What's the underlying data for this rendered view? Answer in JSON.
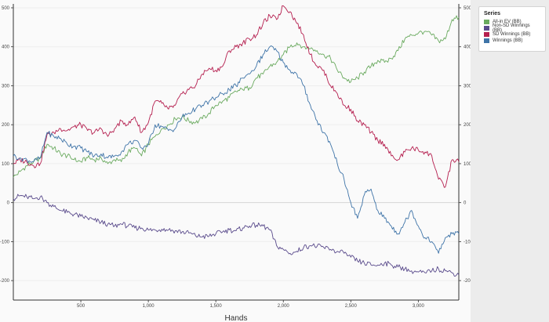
{
  "legend": {
    "title": "Series",
    "items": [
      {
        "label": "All-in EV (BB)",
        "color": "#6aaa5f"
      },
      {
        "label": "Non-SD Winnings (BB)",
        "color": "#5a4b8c"
      },
      {
        "label": "SD Winnings (BB)",
        "color": "#b51f4f"
      },
      {
        "label": "Winnings (BB)",
        "color": "#3f74a8"
      }
    ]
  },
  "chart_data": {
    "type": "line",
    "xlabel": "Hands",
    "ylabel": "",
    "xlim": [
      0,
      3300
    ],
    "ylim": [
      -250,
      510
    ],
    "x_ticks": [
      500,
      1000,
      1500,
      2000,
      2500,
      3000
    ],
    "x_tick_labels": [
      "500",
      "1,000",
      "1,500",
      "2,000",
      "2,500",
      "3,000"
    ],
    "y_ticks": [
      -200,
      -100,
      0,
      100,
      200,
      300,
      400,
      500
    ],
    "y_tick_labels": [
      "-200",
      "-100",
      "0",
      "100",
      "200",
      "300",
      "400",
      "500"
    ],
    "grid": "horizontal",
    "legend_position": "right",
    "series": [
      {
        "name": "All-in EV (BB)",
        "color": "#6aaa5f",
        "x": [
          0,
          50,
          100,
          150,
          200,
          250,
          300,
          350,
          400,
          450,
          500,
          550,
          600,
          650,
          700,
          750,
          800,
          850,
          900,
          950,
          1000,
          1050,
          1100,
          1150,
          1200,
          1250,
          1300,
          1350,
          1400,
          1450,
          1500,
          1550,
          1600,
          1650,
          1700,
          1750,
          1800,
          1850,
          1900,
          1950,
          2000,
          2050,
          2100,
          2150,
          2200,
          2250,
          2300,
          2350,
          2400,
          2450,
          2500,
          2550,
          2600,
          2650,
          2700,
          2750,
          2800,
          2850,
          2900,
          2950,
          3000,
          3050,
          3100,
          3150,
          3200,
          3250,
          3300
        ],
        "values": [
          65,
          80,
          95,
          105,
          115,
          150,
          140,
          125,
          120,
          110,
          105,
          115,
          110,
          115,
          100,
          110,
          105,
          130,
          140,
          120,
          150,
          170,
          190,
          200,
          215,
          220,
          210,
          205,
          215,
          230,
          250,
          260,
          270,
          285,
          290,
          295,
          320,
          330,
          350,
          360,
          380,
          400,
          410,
          400,
          395,
          390,
          380,
          370,
          340,
          320,
          310,
          320,
          335,
          350,
          365,
          360,
          370,
          390,
          420,
          430,
          435,
          440,
          430,
          415,
          420,
          470,
          475
        ]
      },
      {
        "name": "Non-SD Winnings (BB)",
        "color": "#5a4b8c",
        "x": [
          0,
          50,
          100,
          150,
          200,
          250,
          300,
          350,
          400,
          450,
          500,
          550,
          600,
          650,
          700,
          750,
          800,
          850,
          900,
          950,
          1000,
          1050,
          1100,
          1150,
          1200,
          1250,
          1300,
          1350,
          1400,
          1450,
          1500,
          1550,
          1600,
          1650,
          1700,
          1750,
          1800,
          1850,
          1900,
          1950,
          2000,
          2050,
          2100,
          2150,
          2200,
          2250,
          2300,
          2350,
          2400,
          2450,
          2500,
          2550,
          2600,
          2650,
          2700,
          2750,
          2800,
          2850,
          2900,
          2950,
          3000,
          3050,
          3100,
          3150,
          3200,
          3250,
          3300
        ],
        "values": [
          10,
          18,
          15,
          10,
          15,
          0,
          -10,
          -20,
          -25,
          -30,
          -35,
          -40,
          -45,
          -50,
          -55,
          -60,
          -55,
          -60,
          -65,
          -65,
          -70,
          -70,
          -68,
          -70,
          -72,
          -75,
          -78,
          -85,
          -88,
          -86,
          -80,
          -75,
          -70,
          -72,
          -65,
          -60,
          -58,
          -60,
          -70,
          -110,
          -120,
          -130,
          -125,
          -115,
          -110,
          -112,
          -115,
          -120,
          -125,
          -130,
          -140,
          -150,
          -155,
          -160,
          -160,
          -155,
          -160,
          -165,
          -170,
          -175,
          -178,
          -180,
          -175,
          -170,
          -175,
          -180,
          -185
        ]
      },
      {
        "name": "SD Winnings (BB)",
        "color": "#b51f4f",
        "x": [
          0,
          50,
          100,
          150,
          200,
          250,
          300,
          350,
          400,
          450,
          500,
          550,
          600,
          650,
          700,
          750,
          800,
          850,
          900,
          950,
          1000,
          1050,
          1100,
          1150,
          1200,
          1250,
          1300,
          1350,
          1400,
          1450,
          1500,
          1550,
          1600,
          1650,
          1700,
          1750,
          1800,
          1850,
          1900,
          1950,
          2000,
          2050,
          2100,
          2150,
          2200,
          2250,
          2300,
          2350,
          2400,
          2450,
          2500,
          2550,
          2600,
          2650,
          2700,
          2750,
          2800,
          2850,
          2900,
          2950,
          3000,
          3050,
          3100,
          3150,
          3200,
          3250,
          3300
        ],
        "values": [
          100,
          110,
          105,
          95,
          100,
          175,
          180,
          190,
          185,
          195,
          200,
          185,
          180,
          190,
          170,
          190,
          210,
          200,
          220,
          180,
          205,
          260,
          255,
          240,
          250,
          280,
          290,
          300,
          330,
          345,
          340,
          350,
          390,
          400,
          410,
          420,
          430,
          460,
          480,
          470,
          505,
          490,
          460,
          430,
          380,
          350,
          340,
          300,
          280,
          250,
          240,
          210,
          200,
          180,
          160,
          150,
          120,
          110,
          130,
          140,
          135,
          130,
          120,
          60,
          40,
          110,
          105
        ]
      },
      {
        "name": "Winnings (BB)",
        "color": "#3f74a8",
        "x": [
          0,
          50,
          100,
          150,
          200,
          250,
          300,
          350,
          400,
          450,
          500,
          550,
          600,
          650,
          700,
          750,
          800,
          850,
          900,
          950,
          1000,
          1050,
          1100,
          1150,
          1200,
          1250,
          1300,
          1350,
          1400,
          1450,
          1500,
          1550,
          1600,
          1650,
          1700,
          1750,
          1800,
          1850,
          1900,
          1950,
          2000,
          2050,
          2100,
          2150,
          2200,
          2250,
          2300,
          2350,
          2400,
          2450,
          2500,
          2550,
          2600,
          2650,
          2700,
          2750,
          2800,
          2850,
          2900,
          2950,
          3000,
          3050,
          3100,
          3150,
          3200,
          3250,
          3300
        ],
        "values": [
          120,
          115,
          110,
          105,
          115,
          180,
          170,
          165,
          150,
          145,
          140,
          130,
          120,
          125,
          115,
          120,
          130,
          150,
          160,
          140,
          150,
          200,
          195,
          185,
          190,
          220,
          230,
          240,
          250,
          260,
          270,
          280,
          290,
          300,
          320,
          330,
          350,
          380,
          400,
          390,
          360,
          340,
          330,
          300,
          250,
          210,
          180,
          150,
          100,
          60,
          0,
          -40,
          20,
          35,
          -20,
          -40,
          -60,
          -80,
          -50,
          -20,
          -60,
          -90,
          -100,
          -130,
          -90,
          -80,
          -80
        ]
      }
    ]
  }
}
